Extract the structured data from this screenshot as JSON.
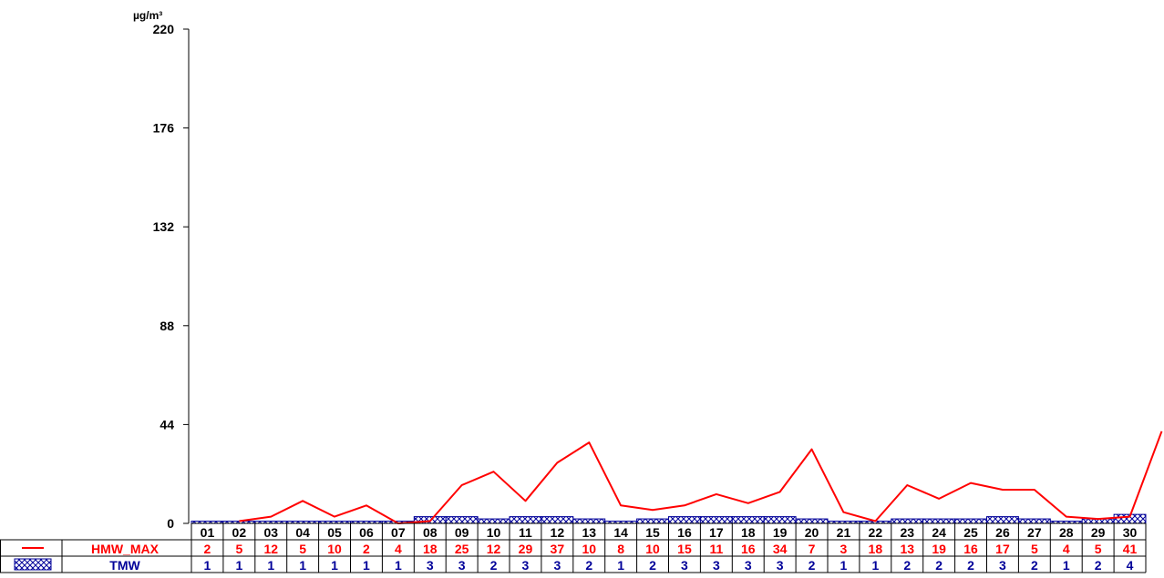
{
  "chart_data": {
    "type": "line",
    "unit_label": "µg/m³",
    "ylim": [
      0,
      220
    ],
    "yticks": [
      0,
      44,
      88,
      132,
      176,
      220
    ],
    "grid": false,
    "legend_placement": "bottom-left table",
    "categories": [
      "01",
      "02",
      "03",
      "04",
      "05",
      "06",
      "07",
      "08",
      "09",
      "10",
      "11",
      "12",
      "13",
      "14",
      "15",
      "16",
      "17",
      "18",
      "19",
      "20",
      "21",
      "22",
      "23",
      "24",
      "25",
      "26",
      "27",
      "28",
      "29",
      "30"
    ],
    "series": [
      {
        "name": "HMW_MAX",
        "type": "line",
        "color": "#ff0000",
        "table_values": [
          2,
          5,
          12,
          5,
          10,
          2,
          4,
          18,
          25,
          12,
          29,
          37,
          10,
          8,
          10,
          15,
          11,
          16,
          34,
          7,
          3,
          18,
          13,
          19,
          16,
          17,
          5,
          4,
          5,
          41
        ],
        "plotted_values": [
          null,
          1,
          3,
          10,
          3,
          8,
          0,
          1,
          17,
          23,
          10,
          27,
          36,
          8,
          6,
          8,
          13,
          9,
          14,
          33,
          5,
          1,
          17,
          11,
          18,
          15,
          15,
          3,
          2,
          3,
          41
        ]
      },
      {
        "name": "TMW",
        "type": "bar",
        "color": "#000099",
        "pattern": "crosshatch",
        "values": [
          1,
          1,
          1,
          1,
          1,
          1,
          1,
          3,
          3,
          2,
          3,
          3,
          2,
          1,
          2,
          3,
          3,
          3,
          3,
          2,
          1,
          1,
          2,
          2,
          2,
          3,
          2,
          1,
          2,
          4
        ]
      }
    ]
  }
}
